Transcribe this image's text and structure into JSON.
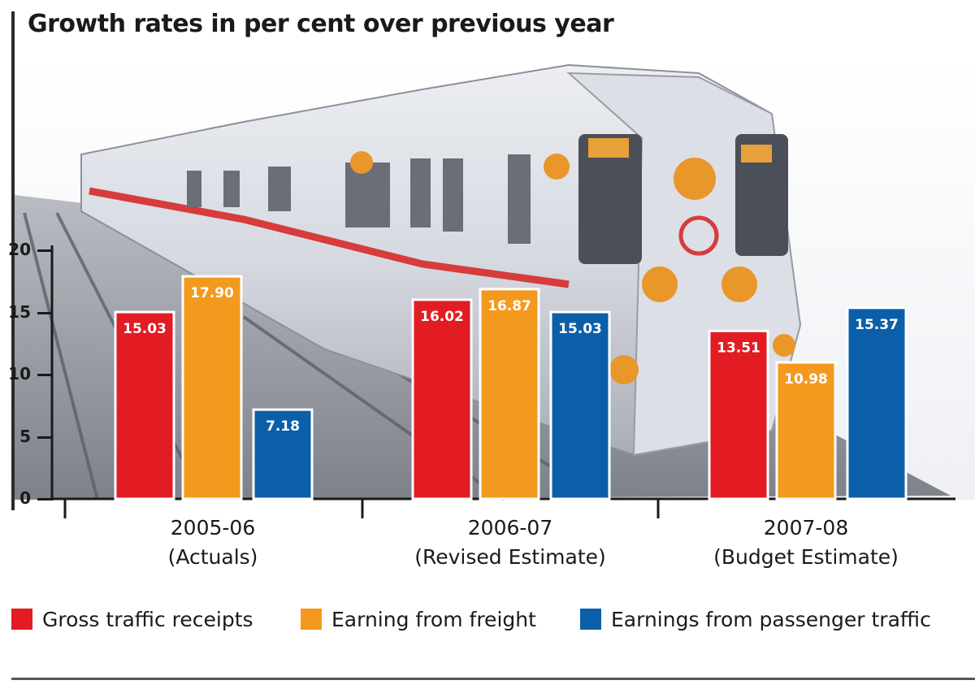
{
  "chart_data": {
    "type": "bar",
    "title": "Growth rates in per cent over previous year",
    "categories": [
      [
        "2005-06",
        "(Actuals)"
      ],
      [
        "2006-07",
        "(Revised Estimate)"
      ],
      [
        "2007-08",
        "(Budget Estimate)"
      ]
    ],
    "series": [
      {
        "name": "Gross traffic receipts",
        "color": "#e31b23",
        "values": [
          15.03,
          16.02,
          13.51
        ]
      },
      {
        "name": "Earning from freight",
        "color": "#f39a1e",
        "values": [
          17.9,
          16.87,
          10.98
        ]
      },
      {
        "name": "Earnings from passenger traffic",
        "color": "#0b5fa8",
        "values": [
          7.18,
          15.03,
          15.37
        ]
      }
    ],
    "data_labels": [
      [
        "15.03",
        "16.02",
        "13.51"
      ],
      [
        "17.90",
        "16.87",
        "10.98"
      ],
      [
        "7.18",
        "15.03",
        "15.37"
      ]
    ],
    "ylim": [
      0,
      20
    ],
    "yticks": [
      "0",
      "5",
      "10",
      "15",
      "20"
    ],
    "xlabel": "",
    "ylabel": "",
    "grid": false,
    "legend_position": "bottom",
    "background_image": "metro-train-photo"
  }
}
